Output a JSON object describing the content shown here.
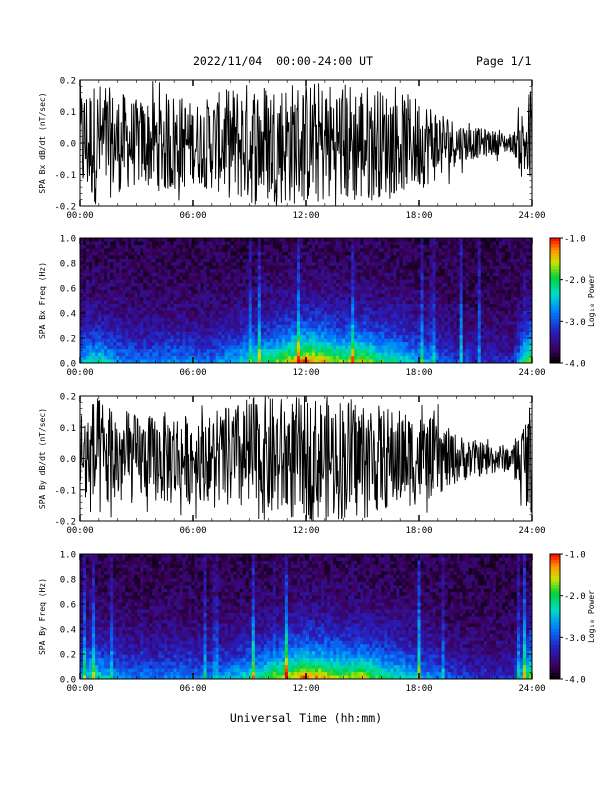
{
  "header": {
    "title": "2022/11/04  00:00-24:00 UT",
    "page": "Page 1/1"
  },
  "xlabel": "Universal Time (hh:mm)",
  "chart_data": [
    {
      "type": "line",
      "ylabel": "SPA Bx dB/dt (nT/sec)",
      "ylim": [
        -0.2,
        0.2
      ],
      "yticks": [
        "0.2",
        "0.1",
        "0.0",
        "-0.1",
        "-0.2"
      ],
      "xticks": [
        "00:00",
        "06:00",
        "12:00",
        "18:00",
        "24:00"
      ],
      "xlim_hours": [
        0,
        24
      ],
      "amplitude_envelope": {
        "hours": [
          0,
          1,
          2,
          3,
          4,
          5,
          6,
          7,
          8,
          9,
          10,
          11,
          12,
          13,
          14,
          15,
          16,
          17,
          18,
          19,
          20,
          21,
          22,
          23,
          24
        ],
        "values": [
          0.18,
          0.2,
          0.16,
          0.14,
          0.15,
          0.17,
          0.13,
          0.15,
          0.18,
          0.2,
          0.2,
          0.2,
          0.2,
          0.2,
          0.2,
          0.2,
          0.17,
          0.16,
          0.15,
          0.12,
          0.07,
          0.05,
          0.04,
          0.03,
          0.2
        ]
      }
    },
    {
      "type": "heatmap",
      "ylabel": "SPA Bx Freq (Hz)",
      "ylim": [
        0,
        1
      ],
      "yticks": [
        "1.0",
        "0.8",
        "0.6",
        "0.4",
        "0.2",
        "0.0"
      ],
      "xticks": [
        "00:00",
        "06:00",
        "12:00",
        "18:00",
        "24:00"
      ],
      "colorbar": {
        "label": "Log₁₀ Power",
        "ticks": [
          "-1.0",
          "-2.0",
          "-3.0",
          "-4.0"
        ],
        "range": [
          -4,
          -1
        ]
      },
      "activity": {
        "hours": [
          0,
          1,
          2,
          3,
          4,
          5,
          6,
          7,
          8,
          9,
          10,
          11,
          12,
          13,
          14,
          15,
          16,
          17,
          18,
          19,
          20,
          21,
          22,
          23,
          24
        ],
        "values": [
          0.45,
          0.55,
          0.4,
          0.35,
          0.35,
          0.4,
          0.35,
          0.35,
          0.45,
          0.55,
          0.65,
          0.8,
          0.95,
          0.85,
          0.75,
          0.8,
          0.65,
          0.55,
          0.45,
          0.35,
          0.25,
          0.2,
          0.2,
          0.2,
          0.85
        ]
      }
    },
    {
      "type": "line",
      "ylabel": "SPA By dB/dt (nT/sec)",
      "ylim": [
        -0.2,
        0.2
      ],
      "yticks": [
        "0.2",
        "0.1",
        "0.0",
        "-0.1",
        "-0.2"
      ],
      "xticks": [
        "00:00",
        "06:00",
        "12:00",
        "18:00",
        "24:00"
      ],
      "xlim_hours": [
        0,
        24
      ],
      "amplitude_envelope": {
        "hours": [
          0,
          1,
          2,
          3,
          4,
          5,
          6,
          7,
          8,
          9,
          10,
          11,
          12,
          13,
          14,
          15,
          16,
          17,
          18,
          19,
          20,
          21,
          22,
          23,
          24
        ],
        "values": [
          0.17,
          0.2,
          0.17,
          0.14,
          0.14,
          0.16,
          0.13,
          0.14,
          0.17,
          0.2,
          0.2,
          0.2,
          0.2,
          0.2,
          0.2,
          0.2,
          0.17,
          0.16,
          0.15,
          0.12,
          0.08,
          0.06,
          0.05,
          0.04,
          0.2
        ]
      }
    },
    {
      "type": "heatmap",
      "ylabel": "SPA By Freq (Hz)",
      "ylim": [
        0,
        1
      ],
      "yticks": [
        "1.0",
        "0.8",
        "0.6",
        "0.4",
        "0.2",
        "0.0"
      ],
      "xticks": [
        "00:00",
        "06:00",
        "12:00",
        "18:00",
        "24:00"
      ],
      "colorbar": {
        "label": "Log₁₀ Power",
        "ticks": [
          "-1.0",
          "-2.0",
          "-3.0",
          "-4.0"
        ],
        "range": [
          -4,
          -1
        ]
      },
      "activity": {
        "hours": [
          0,
          1,
          2,
          3,
          4,
          5,
          6,
          7,
          8,
          9,
          10,
          11,
          12,
          13,
          14,
          15,
          16,
          17,
          18,
          19,
          20,
          21,
          22,
          23,
          24
        ],
        "values": [
          0.45,
          0.55,
          0.4,
          0.35,
          0.35,
          0.4,
          0.35,
          0.35,
          0.45,
          0.55,
          0.65,
          0.8,
          0.95,
          0.85,
          0.75,
          0.8,
          0.65,
          0.55,
          0.45,
          0.35,
          0.25,
          0.2,
          0.2,
          0.2,
          0.85
        ]
      }
    }
  ]
}
